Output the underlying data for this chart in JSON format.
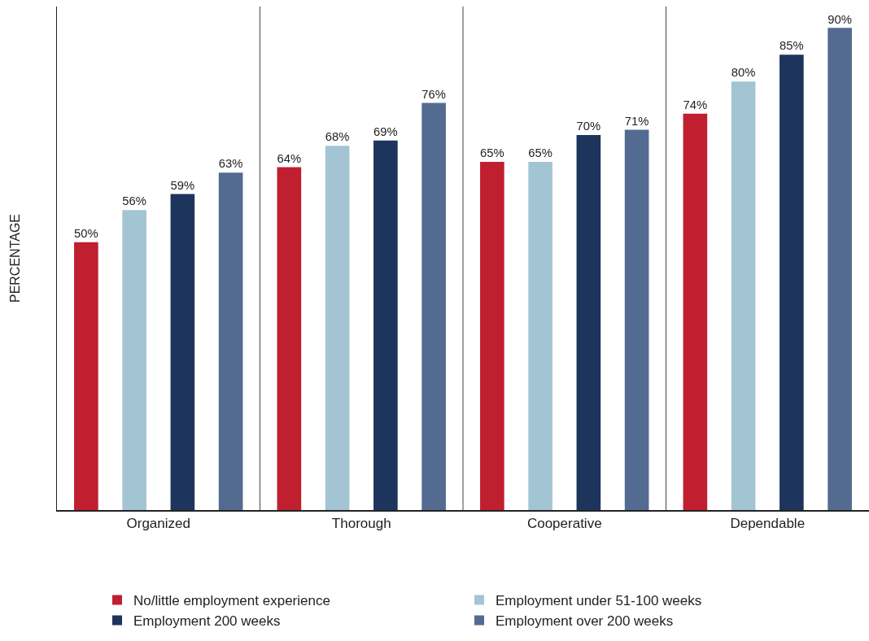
{
  "chart_data": {
    "type": "bar",
    "ylabel": "PERCENTAGE",
    "categories": [
      "Organized",
      "Thorough",
      "Cooperative",
      "Dependable"
    ],
    "series": [
      {
        "name": "No/little employment experience",
        "color": "#c01f2f",
        "values": [
          50,
          64,
          65,
          74
        ],
        "value_labels": [
          "50%",
          "64%",
          "65%",
          "74%"
        ]
      },
      {
        "name": "Employment under 51-100 weeks",
        "color": "#a3c5d3",
        "values": [
          56,
          68,
          65,
          80
        ],
        "value_labels": [
          "56%",
          "68%",
          "65%",
          "80%"
        ]
      },
      {
        "name": "Employment 200 weeks",
        "color": "#1d345c",
        "values": [
          59,
          69,
          70,
          85
        ],
        "value_labels": [
          "59%",
          "69%",
          "70%",
          "85%"
        ]
      },
      {
        "name": "Employment over 200 weeks",
        "color": "#536b91",
        "values": [
          63,
          76,
          71,
          90
        ],
        "value_labels": [
          "63%",
          "76%",
          "71%",
          "90%"
        ]
      }
    ],
    "ylim": [
      0,
      94
    ],
    "grid": "x",
    "legend": "bottom"
  }
}
